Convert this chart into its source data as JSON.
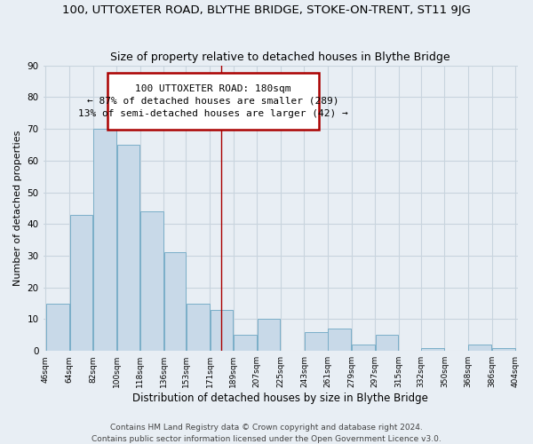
{
  "title": "100, UTTOXETER ROAD, BLYTHE BRIDGE, STOKE-ON-TRENT, ST11 9JG",
  "subtitle": "Size of property relative to detached houses in Blythe Bridge",
  "xlabel": "Distribution of detached houses by size in Blythe Bridge",
  "ylabel": "Number of detached properties",
  "footer_lines": [
    "Contains HM Land Registry data © Crown copyright and database right 2024.",
    "Contains public sector information licensed under the Open Government Licence v3.0."
  ],
  "bar_left_edges": [
    46,
    64,
    82,
    100,
    118,
    136,
    153,
    171,
    189,
    207,
    225,
    243,
    261,
    279,
    297,
    315,
    332,
    350,
    368,
    386
  ],
  "bar_widths": [
    18,
    18,
    18,
    18,
    18,
    17,
    18,
    18,
    18,
    18,
    18,
    18,
    18,
    18,
    18,
    17,
    18,
    18,
    18,
    18
  ],
  "bar_heights": [
    15,
    43,
    70,
    65,
    44,
    31,
    15,
    13,
    5,
    10,
    0,
    6,
    7,
    2,
    5,
    0,
    1,
    0,
    2,
    1
  ],
  "bar_color": "#c8d9e8",
  "bar_edge_color": "#7aaec8",
  "xtick_labels": [
    "46sqm",
    "64sqm",
    "82sqm",
    "100sqm",
    "118sqm",
    "136sqm",
    "153sqm",
    "171sqm",
    "189sqm",
    "207sqm",
    "225sqm",
    "243sqm",
    "261sqm",
    "279sqm",
    "297sqm",
    "315sqm",
    "332sqm",
    "350sqm",
    "368sqm",
    "386sqm",
    "404sqm"
  ],
  "ylim": [
    0,
    90
  ],
  "yticks": [
    0,
    10,
    20,
    30,
    40,
    50,
    60,
    70,
    80,
    90
  ],
  "vline_x": 180,
  "vline_color": "#aa0000",
  "annotation_line1": "100 UTTOXETER ROAD: 180sqm",
  "annotation_line2": "← 87% of detached houses are smaller (289)",
  "annotation_line3": "13% of semi-detached houses are larger (42) →",
  "grid_color": "#c8d4de",
  "bg_color": "#e8eef4",
  "plot_bg_color": "#e8eef4",
  "title_fontsize": 9.5,
  "subtitle_fontsize": 9,
  "xlabel_fontsize": 8.5,
  "ylabel_fontsize": 8,
  "xtick_fontsize": 6.5,
  "ytick_fontsize": 7.5,
  "footer_fontsize": 6.5,
  "annot_fontsize": 8
}
